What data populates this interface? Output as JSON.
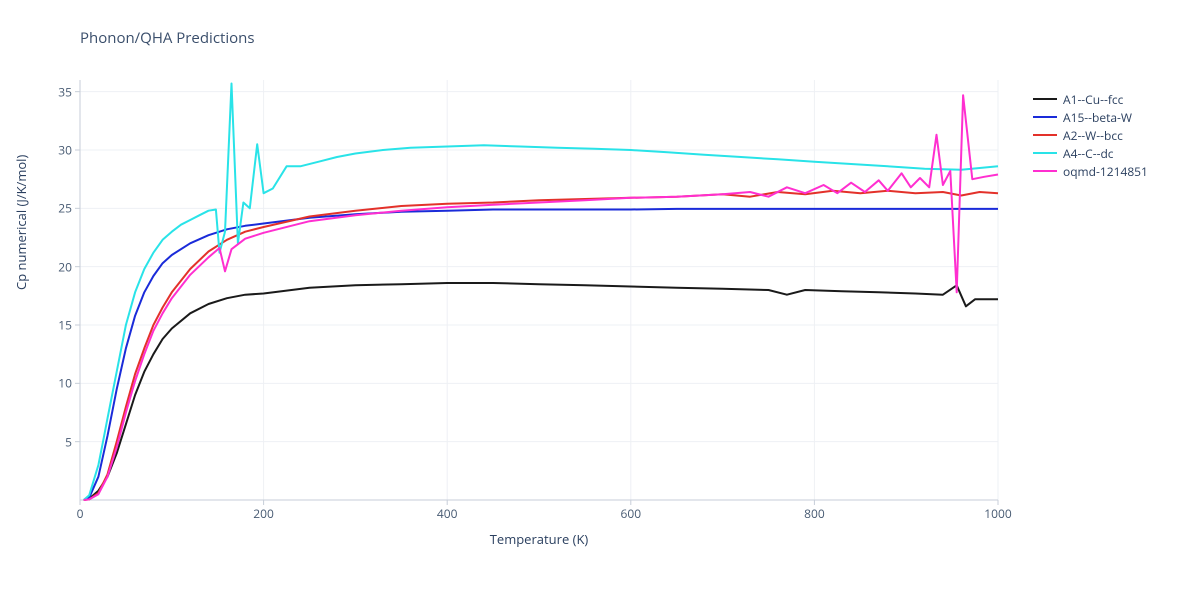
{
  "chart": {
    "title": "Phonon/QHA Predictions",
    "title_fontsize": 15,
    "title_color": "#3a4e6b",
    "xlabel": "Temperature (K)",
    "ylabel": "Cp numerical (J/K/mol)",
    "label_fontsize": 13,
    "tick_fontsize": 12,
    "tick_color": "#485b73",
    "background_color": "#ffffff",
    "grid_color": "#eef0f4",
    "axis_color": "#c7ced8",
    "xlim": [
      0,
      1000
    ],
    "ylim": [
      0,
      36
    ],
    "xticks": [
      0,
      200,
      400,
      600,
      800,
      1000
    ],
    "yticks": [
      5,
      10,
      15,
      20,
      25,
      30,
      35
    ],
    "line_width": 2,
    "series": [
      {
        "name": "A1--Cu--fcc",
        "color": "#1a1a1a",
        "data": [
          [
            4,
            0.0
          ],
          [
            10,
            0.1
          ],
          [
            20,
            0.8
          ],
          [
            30,
            2.0
          ],
          [
            40,
            4.0
          ],
          [
            50,
            6.5
          ],
          [
            60,
            9.0
          ],
          [
            70,
            11.0
          ],
          [
            80,
            12.5
          ],
          [
            90,
            13.8
          ],
          [
            100,
            14.7
          ],
          [
            120,
            16.0
          ],
          [
            140,
            16.8
          ],
          [
            160,
            17.3
          ],
          [
            180,
            17.6
          ],
          [
            200,
            17.7
          ],
          [
            250,
            18.2
          ],
          [
            300,
            18.4
          ],
          [
            350,
            18.5
          ],
          [
            400,
            18.6
          ],
          [
            450,
            18.6
          ],
          [
            500,
            18.5
          ],
          [
            550,
            18.4
          ],
          [
            600,
            18.3
          ],
          [
            650,
            18.2
          ],
          [
            700,
            18.1
          ],
          [
            750,
            18.0
          ],
          [
            770,
            17.6
          ],
          [
            790,
            18.0
          ],
          [
            830,
            17.9
          ],
          [
            870,
            17.8
          ],
          [
            910,
            17.7
          ],
          [
            940,
            17.6
          ],
          [
            955,
            18.4
          ],
          [
            965,
            16.6
          ],
          [
            975,
            17.2
          ],
          [
            985,
            17.2
          ],
          [
            1000,
            17.2
          ]
        ]
      },
      {
        "name": "A15--beta-W",
        "color": "#1a2bd9",
        "data": [
          [
            4,
            0.0
          ],
          [
            10,
            0.2
          ],
          [
            20,
            2.0
          ],
          [
            30,
            5.5
          ],
          [
            40,
            9.5
          ],
          [
            50,
            13.0
          ],
          [
            60,
            15.8
          ],
          [
            70,
            17.8
          ],
          [
            80,
            19.2
          ],
          [
            90,
            20.3
          ],
          [
            100,
            21.0
          ],
          [
            120,
            22.0
          ],
          [
            140,
            22.7
          ],
          [
            160,
            23.2
          ],
          [
            180,
            23.5
          ],
          [
            200,
            23.7
          ],
          [
            250,
            24.2
          ],
          [
            300,
            24.5
          ],
          [
            350,
            24.7
          ],
          [
            400,
            24.8
          ],
          [
            450,
            24.9
          ],
          [
            500,
            24.9
          ],
          [
            550,
            24.9
          ],
          [
            600,
            24.9
          ],
          [
            650,
            24.95
          ],
          [
            700,
            24.95
          ],
          [
            750,
            24.95
          ],
          [
            800,
            24.95
          ],
          [
            850,
            24.95
          ],
          [
            900,
            24.95
          ],
          [
            950,
            24.95
          ],
          [
            1000,
            24.95
          ]
        ]
      },
      {
        "name": "A2--W--bcc",
        "color": "#e3312a",
        "data": [
          [
            4,
            0.0
          ],
          [
            10,
            0.05
          ],
          [
            20,
            0.6
          ],
          [
            30,
            2.2
          ],
          [
            40,
            5.0
          ],
          [
            50,
            8.0
          ],
          [
            60,
            10.8
          ],
          [
            70,
            13.0
          ],
          [
            80,
            15.0
          ],
          [
            90,
            16.5
          ],
          [
            100,
            17.8
          ],
          [
            120,
            19.8
          ],
          [
            140,
            21.3
          ],
          [
            160,
            22.3
          ],
          [
            180,
            23.0
          ],
          [
            200,
            23.4
          ],
          [
            250,
            24.3
          ],
          [
            300,
            24.8
          ],
          [
            350,
            25.2
          ],
          [
            400,
            25.4
          ],
          [
            450,
            25.5
          ],
          [
            500,
            25.7
          ],
          [
            550,
            25.8
          ],
          [
            600,
            25.9
          ],
          [
            650,
            26.0
          ],
          [
            700,
            26.2
          ],
          [
            730,
            26.0
          ],
          [
            760,
            26.4
          ],
          [
            790,
            26.2
          ],
          [
            820,
            26.5
          ],
          [
            850,
            26.3
          ],
          [
            880,
            26.5
          ],
          [
            910,
            26.3
          ],
          [
            940,
            26.4
          ],
          [
            960,
            26.1
          ],
          [
            980,
            26.4
          ],
          [
            1000,
            26.3
          ]
        ]
      },
      {
        "name": "A4--C--dc",
        "color": "#29e3e8",
        "data": [
          [
            4,
            0.0
          ],
          [
            10,
            0.4
          ],
          [
            20,
            3.0
          ],
          [
            25,
            5.0
          ],
          [
            30,
            7.0
          ],
          [
            35,
            9.0
          ],
          [
            40,
            11.0
          ],
          [
            45,
            13.0
          ],
          [
            50,
            15.0
          ],
          [
            60,
            17.8
          ],
          [
            70,
            19.8
          ],
          [
            80,
            21.2
          ],
          [
            90,
            22.3
          ],
          [
            100,
            23.0
          ],
          [
            110,
            23.6
          ],
          [
            120,
            24.0
          ],
          [
            130,
            24.4
          ],
          [
            140,
            24.8
          ],
          [
            148,
            24.9
          ],
          [
            152,
            21.2
          ],
          [
            158,
            23.0
          ],
          [
            165,
            35.7
          ],
          [
            172,
            22.0
          ],
          [
            178,
            25.5
          ],
          [
            185,
            25.0
          ],
          [
            193,
            30.5
          ],
          [
            200,
            26.3
          ],
          [
            210,
            26.7
          ],
          [
            225,
            28.6
          ],
          [
            240,
            28.6
          ],
          [
            260,
            29.0
          ],
          [
            280,
            29.4
          ],
          [
            300,
            29.7
          ],
          [
            330,
            30.0
          ],
          [
            360,
            30.2
          ],
          [
            400,
            30.3
          ],
          [
            440,
            30.4
          ],
          [
            480,
            30.3
          ],
          [
            520,
            30.2
          ],
          [
            560,
            30.1
          ],
          [
            600,
            30.0
          ],
          [
            640,
            29.8
          ],
          [
            680,
            29.6
          ],
          [
            720,
            29.4
          ],
          [
            760,
            29.2
          ],
          [
            800,
            29.0
          ],
          [
            840,
            28.8
          ],
          [
            880,
            28.6
          ],
          [
            920,
            28.4
          ],
          [
            960,
            28.3
          ],
          [
            1000,
            28.6
          ]
        ]
      },
      {
        "name": "oqmd-1214851",
        "color": "#ff2fd0",
        "data": [
          [
            4,
            0.0
          ],
          [
            10,
            0.05
          ],
          [
            20,
            0.5
          ],
          [
            30,
            2.0
          ],
          [
            40,
            4.5
          ],
          [
            50,
            7.5
          ],
          [
            60,
            10.2
          ],
          [
            70,
            12.5
          ],
          [
            80,
            14.5
          ],
          [
            90,
            16.0
          ],
          [
            100,
            17.3
          ],
          [
            120,
            19.3
          ],
          [
            140,
            20.8
          ],
          [
            152,
            21.6
          ],
          [
            158,
            19.6
          ],
          [
            165,
            21.5
          ],
          [
            180,
            22.4
          ],
          [
            200,
            22.9
          ],
          [
            250,
            23.9
          ],
          [
            300,
            24.4
          ],
          [
            350,
            24.8
          ],
          [
            400,
            25.1
          ],
          [
            450,
            25.3
          ],
          [
            500,
            25.5
          ],
          [
            550,
            25.7
          ],
          [
            600,
            25.9
          ],
          [
            650,
            26.0
          ],
          [
            700,
            26.2
          ],
          [
            730,
            26.4
          ],
          [
            750,
            26.0
          ],
          [
            770,
            26.8
          ],
          [
            790,
            26.3
          ],
          [
            810,
            27.0
          ],
          [
            825,
            26.3
          ],
          [
            840,
            27.2
          ],
          [
            855,
            26.4
          ],
          [
            870,
            27.4
          ],
          [
            880,
            26.5
          ],
          [
            895,
            28.0
          ],
          [
            905,
            26.8
          ],
          [
            915,
            27.6
          ],
          [
            925,
            26.8
          ],
          [
            933,
            31.3
          ],
          [
            940,
            27.0
          ],
          [
            948,
            28.2
          ],
          [
            955,
            17.8
          ],
          [
            962,
            34.7
          ],
          [
            972,
            27.5
          ],
          [
            985,
            27.7
          ],
          [
            1000,
            27.9
          ]
        ]
      }
    ]
  }
}
